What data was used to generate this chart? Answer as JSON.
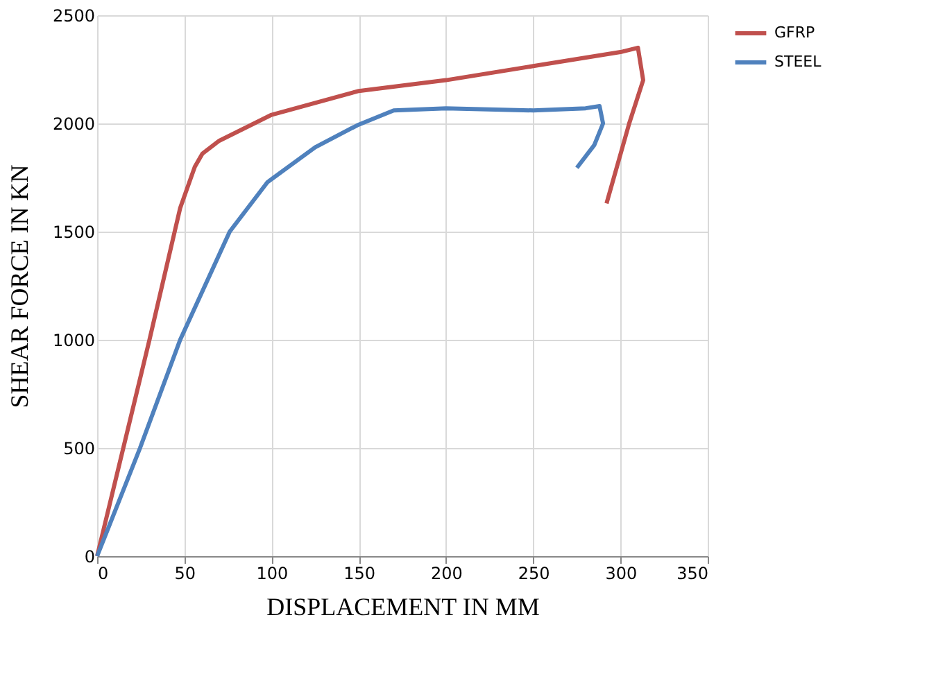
{
  "chart_data": {
    "type": "line",
    "xlabel": "DISPLACEMENT IN MM",
    "ylabel": "SHEAR FORCE IN KN",
    "xlim": [
      0,
      350
    ],
    "xticks": [
      0,
      50,
      100,
      150,
      200,
      250,
      300,
      350
    ],
    "ylim": [
      0,
      2500
    ],
    "yticks": [
      0,
      500,
      1000,
      1500,
      2000,
      2500
    ],
    "grid": true,
    "legend": "right",
    "marker": "none",
    "line_style": "solid",
    "series": [
      {
        "name": "GFRP",
        "color": "#c0504d",
        "x": [
          0,
          15,
          30,
          47.6,
          56,
          60.3,
          70,
          100,
          150,
          200,
          250,
          300,
          310,
          313,
          305,
          292
        ],
        "values": [
          0,
          500,
          1000,
          1609,
          1800,
          1860,
          1920,
          2040,
          2150,
          2200,
          2265,
          2330,
          2350,
          2200,
          2000,
          1630
        ]
      },
      {
        "name": "STEEL",
        "color": "#4f81bd",
        "x": [
          0,
          24.6,
          47.6,
          76,
          97.7,
          125,
          149,
          170,
          200,
          250,
          280,
          288,
          290,
          285,
          275
        ],
        "values": [
          0,
          500,
          1000,
          1500,
          1729,
          1890,
          1991,
          2060,
          2070,
          2060,
          2070,
          2080,
          2000,
          1900,
          1795
        ]
      }
    ]
  }
}
